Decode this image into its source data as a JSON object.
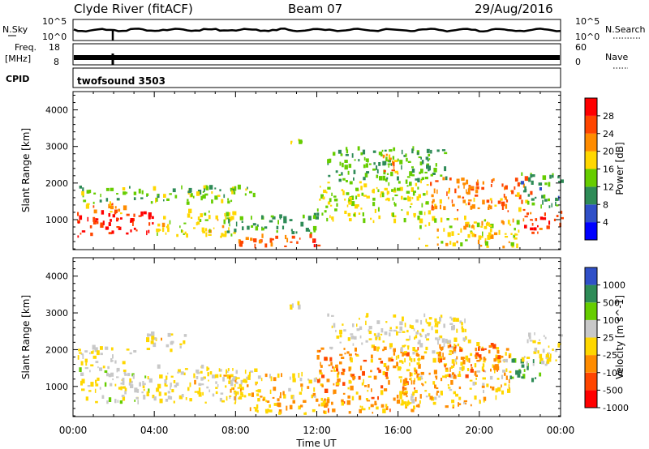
{
  "header": {
    "station": "Clyde River (fitACF)",
    "beam": "Beam 07",
    "date": "29/Aug/2016"
  },
  "strip_labels": {
    "nsky": "N.Sky",
    "nsearch": "N.Search",
    "freq_line1": "Freq.",
    "freq_line2": "[MHz]",
    "nave": "Nave",
    "cpid": "CPID",
    "cpid_value": "twofsound 3503",
    "nsky_ticks": [
      "10^5",
      "10^0"
    ],
    "nsearch_ticks": [
      "10^5",
      "10^0"
    ],
    "freq_ticks": [
      "18",
      "8"
    ],
    "nave_ticks": [
      "60",
      "0"
    ]
  },
  "colors": {
    "power": [
      "#0000ff",
      "#3050c8",
      "#2e8b57",
      "#66cd00",
      "#ffd700",
      "#ff8c00",
      "#ff4500",
      "#ff0000"
    ],
    "velocity": [
      "#ff0000",
      "#ff4500",
      "#ff8c00",
      "#ffd700",
      "#c8c8c8",
      "#66cd00",
      "#2e8b57",
      "#3050c8"
    ],
    "frame": "#000000"
  },
  "chart_data": [
    {
      "type": "heatmap",
      "name": "Power",
      "ylabel": "Slant Range [km]",
      "xlabel": "Time UT",
      "xlim": [
        0,
        24
      ],
      "ylim": [
        180,
        4500
      ],
      "x_ticks": [
        "00:00",
        "04:00",
        "08:00",
        "12:00",
        "16:00",
        "20:00",
        "00:00"
      ],
      "y_ticks": [
        1000,
        2000,
        3000,
        4000
      ],
      "colorbar": {
        "label": "Power [dB]",
        "ticks": [
          "28",
          "24",
          "20",
          "16",
          "12",
          "8",
          "4"
        ],
        "range": [
          0,
          32
        ]
      },
      "regions": [
        {
          "t": [
            0.2,
            4.0
          ],
          "r": [
            500,
            1150
          ],
          "v": 29
        },
        {
          "t": [
            0.2,
            2.5
          ],
          "r": [
            1150,
            1400
          ],
          "v": 22
        },
        {
          "t": [
            0.2,
            9.0
          ],
          "r": [
            1400,
            1850
          ],
          "v": 14
        },
        {
          "t": [
            4.0,
            8.0
          ],
          "r": [
            500,
            1200
          ],
          "v": 17
        },
        {
          "t": [
            8.0,
            12.5
          ],
          "r": [
            200,
            500
          ],
          "v": 25
        },
        {
          "t": [
            7.5,
            12.0
          ],
          "r": [
            600,
            1100
          ],
          "v": 12
        },
        {
          "t": [
            10.5,
            11.2
          ],
          "r": [
            3000,
            3300
          ],
          "v": 16
        },
        {
          "t": [
            12.5,
            18.5
          ],
          "r": [
            2000,
            2900
          ],
          "v": 12
        },
        {
          "t": [
            12.0,
            17.5
          ],
          "r": [
            900,
            2000
          ],
          "v": 16
        },
        {
          "t": [
            15.0,
            16.0
          ],
          "r": [
            2200,
            2800
          ],
          "v": 22
        },
        {
          "t": [
            17.5,
            22.5
          ],
          "r": [
            1200,
            2100
          ],
          "v": 23
        },
        {
          "t": [
            17.0,
            22.0
          ],
          "r": [
            200,
            1000
          ],
          "v": 18
        },
        {
          "t": [
            22.0,
            24.0
          ],
          "r": [
            600,
            1200
          ],
          "v": 27
        },
        {
          "t": [
            22.0,
            24.0
          ],
          "r": [
            1300,
            2200
          ],
          "v": 11
        }
      ]
    },
    {
      "type": "heatmap",
      "name": "Velocity",
      "ylabel": "Slant Range [km]",
      "xlabel": "Time UT",
      "xlim": [
        0,
        24
      ],
      "ylim": [
        180,
        4500
      ],
      "x_ticks": [
        "00:00",
        "04:00",
        "08:00",
        "12:00",
        "16:00",
        "20:00",
        "00:00"
      ],
      "y_ticks": [
        1000,
        2000,
        3000,
        4000
      ],
      "colorbar": {
        "label": "Velocity [m s^-1]",
        "ticks": [
          "1000",
          "500",
          "100",
          "25",
          "-25",
          "-100",
          "-500",
          "-1000"
        ],
        "range": [
          -1200,
          1200
        ]
      },
      "regions": [
        {
          "t": [
            0.2,
            4.0
          ],
          "r": [
            500,
            1400
          ],
          "v": 60
        },
        {
          "t": [
            0.2,
            3.0
          ],
          "r": [
            1400,
            2000
          ],
          "v": 0
        },
        {
          "t": [
            4.0,
            9.0
          ],
          "r": [
            500,
            1500
          ],
          "v": -50
        },
        {
          "t": [
            3.5,
            5.5
          ],
          "r": [
            1900,
            2400
          ],
          "v": -60
        },
        {
          "t": [
            8.5,
            12.5
          ],
          "r": [
            200,
            600
          ],
          "v": -300
        },
        {
          "t": [
            7.5,
            12.0
          ],
          "r": [
            600,
            1300
          ],
          "v": -150
        },
        {
          "t": [
            10.5,
            11.2
          ],
          "r": [
            3000,
            3300
          ],
          "v": -60
        },
        {
          "t": [
            12.5,
            19.5
          ],
          "r": [
            2000,
            2900
          ],
          "v": 0
        },
        {
          "t": [
            12.0,
            17.0
          ],
          "r": [
            250,
            2000
          ],
          "v": -400
        },
        {
          "t": [
            16.0,
            21.5
          ],
          "r": [
            400,
            2000
          ],
          "v": -200
        },
        {
          "t": [
            18.0,
            21.0
          ],
          "r": [
            1200,
            2100
          ],
          "v": -500
        },
        {
          "t": [
            21.5,
            23.0
          ],
          "r": [
            1100,
            1700
          ],
          "v": 600
        },
        {
          "t": [
            22.0,
            24.0
          ],
          "r": [
            1500,
            2400
          ],
          "v": 0
        }
      ]
    }
  ]
}
